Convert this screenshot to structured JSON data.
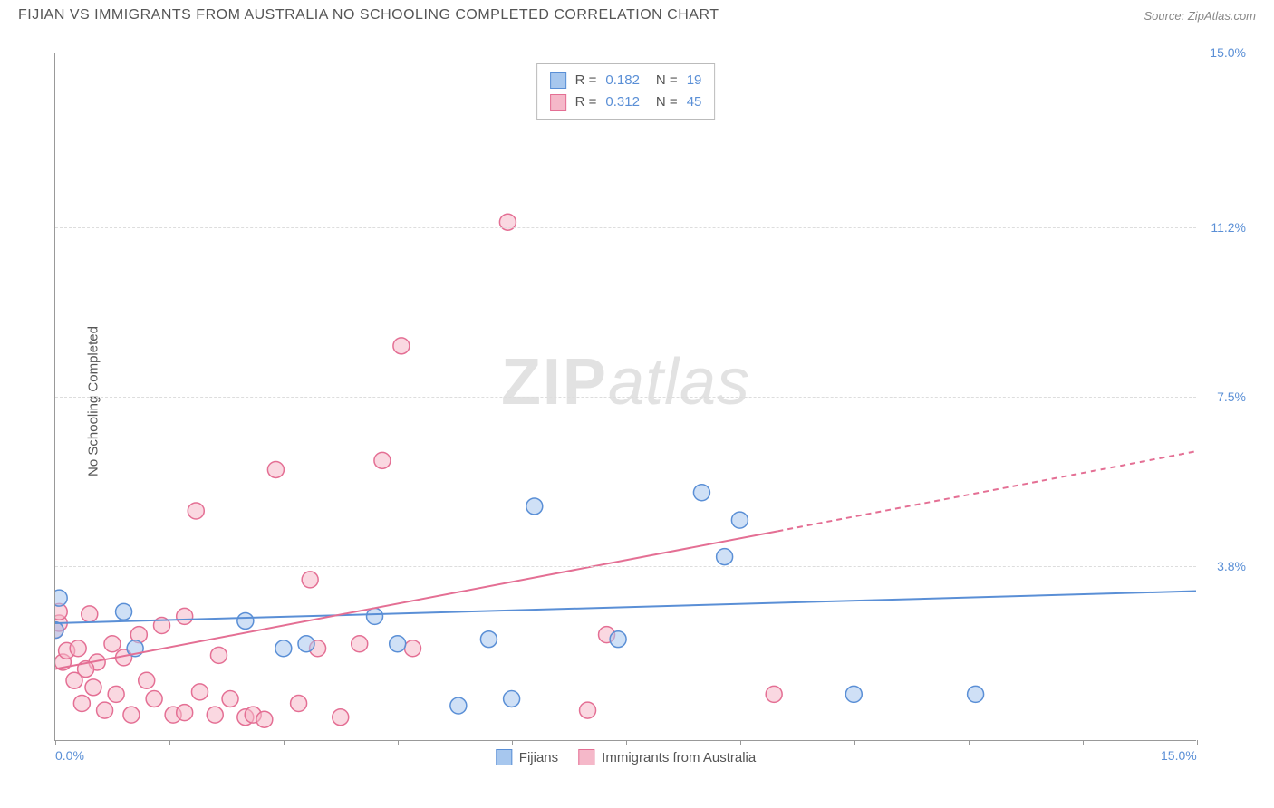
{
  "header": {
    "title": "FIJIAN VS IMMIGRANTS FROM AUSTRALIA NO SCHOOLING COMPLETED CORRELATION CHART",
    "source": "Source: ZipAtlas.com"
  },
  "chart": {
    "type": "scatter",
    "y_axis_label": "No Schooling Completed",
    "watermark_zip": "ZIP",
    "watermark_atlas": "atlas",
    "xlim": [
      0,
      15
    ],
    "ylim": [
      0,
      15
    ],
    "x_ticks": [
      0,
      1.5,
      3,
      4.5,
      6,
      7.5,
      9,
      10.5,
      12,
      13.5,
      15
    ],
    "x_tick_labels": {
      "0": "0.0%",
      "15": "15.0%"
    },
    "y_grid": [
      3.8,
      7.5,
      11.2,
      15.0
    ],
    "y_tick_labels": [
      "3.8%",
      "7.5%",
      "11.2%",
      "15.0%"
    ],
    "background_color": "#ffffff",
    "grid_color": "#dddddd",
    "axis_color": "#999999",
    "marker_radius": 9,
    "marker_stroke_width": 1.5,
    "trend_line_width": 2,
    "series": {
      "fijians": {
        "label": "Fijians",
        "fill": "#a7c7ee",
        "stroke": "#5a8fd6",
        "fill_opacity": 0.55,
        "R": "0.182",
        "N": "19",
        "points": [
          [
            0.05,
            3.1
          ],
          [
            0.9,
            2.8
          ],
          [
            1.05,
            2.0
          ],
          [
            2.5,
            2.6
          ],
          [
            3.0,
            2.0
          ],
          [
            3.3,
            2.1
          ],
          [
            4.2,
            2.7
          ],
          [
            4.5,
            2.1
          ],
          [
            5.3,
            0.75
          ],
          [
            5.7,
            2.2
          ],
          [
            6.3,
            5.1
          ],
          [
            6.0,
            0.9
          ],
          [
            7.4,
            2.2
          ],
          [
            8.5,
            5.4
          ],
          [
            8.8,
            4.0
          ],
          [
            9.0,
            4.8
          ],
          [
            10.5,
            1.0
          ],
          [
            12.1,
            1.0
          ],
          [
            0.0,
            2.4
          ]
        ],
        "trend": {
          "x1": 0,
          "y1": 2.55,
          "x2": 15,
          "y2": 3.25,
          "solid_to_x": 15
        }
      },
      "immigrants": {
        "label": "Immigrants from Australia",
        "fill": "#f5b8c9",
        "stroke": "#e46f94",
        "fill_opacity": 0.55,
        "R": "0.312",
        "N": "45",
        "points": [
          [
            0.0,
            2.4
          ],
          [
            0.05,
            2.55
          ],
          [
            0.1,
            1.7
          ],
          [
            0.15,
            1.95
          ],
          [
            0.25,
            1.3
          ],
          [
            0.3,
            2.0
          ],
          [
            0.35,
            0.8
          ],
          [
            0.45,
            2.75
          ],
          [
            0.5,
            1.15
          ],
          [
            0.55,
            1.7
          ],
          [
            0.65,
            0.65
          ],
          [
            0.75,
            2.1
          ],
          [
            0.8,
            1.0
          ],
          [
            0.9,
            1.8
          ],
          [
            1.0,
            0.55
          ],
          [
            1.1,
            2.3
          ],
          [
            1.2,
            1.3
          ],
          [
            1.3,
            0.9
          ],
          [
            1.4,
            2.5
          ],
          [
            1.55,
            0.55
          ],
          [
            1.7,
            2.7
          ],
          [
            1.85,
            5.0
          ],
          [
            1.9,
            1.05
          ],
          [
            2.1,
            0.55
          ],
          [
            2.3,
            0.9
          ],
          [
            2.5,
            0.5
          ],
          [
            2.6,
            0.55
          ],
          [
            2.75,
            0.45
          ],
          [
            2.9,
            5.9
          ],
          [
            3.2,
            0.8
          ],
          [
            3.35,
            3.5
          ],
          [
            3.45,
            2.0
          ],
          [
            3.75,
            0.5
          ],
          [
            4.0,
            2.1
          ],
          [
            4.3,
            6.1
          ],
          [
            4.55,
            8.6
          ],
          [
            4.7,
            2.0
          ],
          [
            5.95,
            11.3
          ],
          [
            7.0,
            0.65
          ],
          [
            7.25,
            2.3
          ],
          [
            9.45,
            1.0
          ],
          [
            0.05,
            2.8
          ],
          [
            0.4,
            1.55
          ],
          [
            1.7,
            0.6
          ],
          [
            2.15,
            1.85
          ]
        ],
        "trend": {
          "x1": 0,
          "y1": 1.55,
          "x2": 15,
          "y2": 6.3,
          "solid_to_x": 9.5
        }
      }
    },
    "legend_top": {
      "r_label": "R =",
      "n_label": "N ="
    }
  }
}
